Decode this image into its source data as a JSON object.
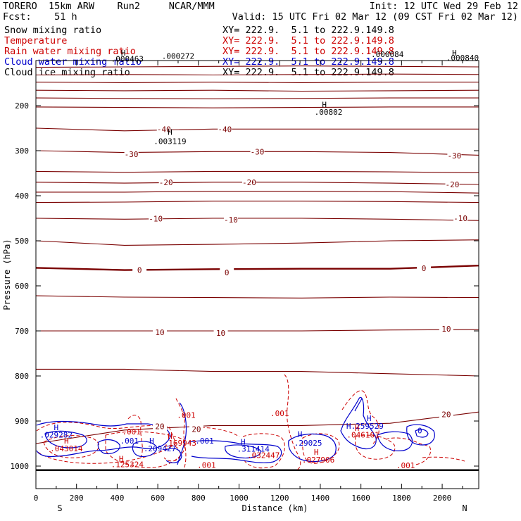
{
  "header": {
    "model": "TORERO  15km ARW    Run2     NCAR/MMM",
    "init": "Init: 12 UTC Wed 29 Feb 12",
    "fcst": "Fcst:    51 h",
    "valid": "Valid: 15 UTC Fri 02 Mar 12 (09 CST Fri 02 Mar 12)",
    "fields": [
      {
        "name": "Snow mixing ratio",
        "xy": "XY= 222.9.  5.1 to 222.9.149.8",
        "color": "#000000"
      },
      {
        "name": "Temperature",
        "xy": "XY= 222.9.  5.1 to 222.9.149.8",
        "color": "#cc0000"
      },
      {
        "name": "Rain water mixing ratio",
        "xy": "XY= 222.9.  5.1 to 222.9.149.8",
        "color": "#cc0000"
      },
      {
        "name": "Cloud water mixing ratio",
        "xy": "XY= 222.9.  5.1 to 222.9.149.8",
        "color": "#0000cc"
      },
      {
        "name": "Cloud ice mixing ratio",
        "xy": "XY= 222.9.  5.1 to 222.9.149.8",
        "color": "#000000"
      }
    ]
  },
  "chart_data": {
    "type": "contour-cross-section",
    "xlabel": "Distance (km)",
    "ylabel": "Pressure (hPa)",
    "xlim": [
      0,
      2180
    ],
    "ylim": [
      1050,
      100
    ],
    "x_ticks": [
      0,
      200,
      400,
      600,
      800,
      1000,
      1200,
      1400,
      1600,
      1800,
      2000
    ],
    "y_ticks": [
      200,
      300,
      400,
      500,
      600,
      700,
      800,
      900,
      1000
    ],
    "endpoints": {
      "left": "S",
      "right": "N"
    },
    "ground_pressure": 1009,
    "temperature_contours": {
      "color": "#7a0000",
      "interval_c": 5,
      "levels": [
        {
          "label": "",
          "p": [
            115,
            114,
            113,
            112,
            113,
            114
          ]
        },
        {
          "label": "",
          "p": [
            132,
            131,
            132,
            131,
            130,
            131
          ]
        },
        {
          "label": "",
          "p": [
            148,
            149,
            148,
            149,
            148,
            148
          ]
        },
        {
          "label": "",
          "p": [
            166,
            167,
            166,
            168,
            167,
            166
          ]
        },
        {
          "label": "",
          "p": [
            183,
            184,
            185,
            184,
            183,
            183
          ]
        },
        {
          "label": "",
          "p": [
            203,
            204,
            205,
            204,
            203,
            203
          ]
        },
        {
          "label": "-40",
          "p": [
            250,
            256,
            252,
            252,
            252,
            252
          ]
        },
        {
          "label": "-30",
          "p": [
            300,
            304,
            302,
            302,
            304,
            310
          ]
        },
        {
          "label": "",
          "p": [
            346,
            348,
            346,
            346,
            347,
            349
          ]
        },
        {
          "label": "-20",
          "p": [
            370,
            372,
            370,
            370,
            372,
            375
          ]
        },
        {
          "label": "",
          "p": [
            392,
            392,
            390,
            390,
            391,
            394
          ]
        },
        {
          "label": "",
          "p": [
            415,
            414,
            412,
            412,
            413,
            415
          ]
        },
        {
          "label": "-10",
          "p": [
            450,
            452,
            450,
            450,
            452,
            455
          ]
        },
        {
          "label": "",
          "p": [
            500,
            510,
            508,
            505,
            500,
            498
          ]
        },
        {
          "label": "0",
          "p": [
            560,
            565,
            563,
            562,
            562,
            555
          ]
        },
        {
          "label": "",
          "p": [
            622,
            625,
            626,
            627,
            625,
            626
          ]
        },
        {
          "label": "10",
          "p": [
            700,
            700,
            700,
            700,
            698,
            697
          ]
        },
        {
          "label": "",
          "p": [
            785,
            785,
            790,
            790,
            795,
            800
          ]
        },
        {
          "label": "20",
          "p": [
            950,
            920,
            910,
            910,
            905,
            880
          ]
        }
      ],
      "label_annotations": [
        {
          "text": "-40",
          "x": 630,
          "p": 252
        },
        {
          "text": "-40",
          "x": 930,
          "p": 252
        },
        {
          "text": "-30",
          "x": 470,
          "p": 308
        },
        {
          "text": "-30",
          "x": 1090,
          "p": 302
        },
        {
          "text": "-30",
          "x": 2060,
          "p": 311
        },
        {
          "text": "-20",
          "x": 640,
          "p": 370
        },
        {
          "text": "-20",
          "x": 1050,
          "p": 370
        },
        {
          "text": "-20",
          "x": 2050,
          "p": 375
        },
        {
          "text": "-10",
          "x": 590,
          "p": 451
        },
        {
          "text": "-10",
          "x": 960,
          "p": 453
        },
        {
          "text": "-10",
          "x": 2090,
          "p": 450
        },
        {
          "text": "0",
          "x": 510,
          "p": 565
        },
        {
          "text": "0",
          "x": 940,
          "p": 570
        },
        {
          "text": "0",
          "x": 1910,
          "p": 561
        },
        {
          "text": "10",
          "x": 610,
          "p": 703
        },
        {
          "text": "10",
          "x": 910,
          "p": 705
        },
        {
          "text": "10",
          "x": 2020,
          "p": 695
        },
        {
          "text": "20",
          "x": 610,
          "p": 912
        },
        {
          "text": "20",
          "x": 790,
          "p": 918
        },
        {
          "text": "20",
          "x": 2020,
          "p": 885
        }
      ]
    },
    "extrema_labels": [
      {
        "text": "H",
        "x": 430,
        "p": 89,
        "color": "#000000"
      },
      {
        "text": ".000463",
        "x": 450,
        "p": 102,
        "color": "#000000"
      },
      {
        "text": ".000272",
        "x": 700,
        "p": 96,
        "color": "#000000"
      },
      {
        "text": ".000084",
        "x": 1730,
        "p": 92,
        "color": "#000000"
      },
      {
        "text": "H",
        "x": 2060,
        "p": 89,
        "color": "#000000"
      },
      {
        "text": ".000840",
        "x": 2100,
        "p": 100,
        "color": "#000000"
      },
      {
        "text": "H",
        "x": 1420,
        "p": 204,
        "color": "#000000"
      },
      {
        "text": ".00802",
        "x": 1440,
        "p": 220,
        "color": "#000000"
      },
      {
        "text": "H",
        "x": 660,
        "p": 265,
        "color": "#000000"
      },
      {
        "text": ".003119",
        "x": 660,
        "p": 285,
        "color": "#000000"
      },
      {
        "text": ".001",
        "x": 740,
        "p": 893,
        "color": "#cc0000"
      },
      {
        "text": "H",
        "x": 100,
        "p": 920,
        "color": "#0000cc"
      },
      {
        "text": ".029282",
        "x": 100,
        "p": 937,
        "color": "#0000cc"
      },
      {
        "text": "H",
        "x": 150,
        "p": 950,
        "color": "#cc0000"
      },
      {
        "text": ".043014",
        "x": 150,
        "p": 967,
        "color": "#cc0000"
      },
      {
        "text": ".001",
        "x": 470,
        "p": 930,
        "color": "#cc0000"
      },
      {
        "text": ".001",
        "x": 460,
        "p": 950,
        "color": "#0000cc"
      },
      {
        "text": "H",
        "x": 570,
        "p": 950,
        "color": "#0000cc"
      },
      {
        "text": ".269427",
        "x": 610,
        "p": 967,
        "color": "#0000cc"
      },
      {
        "text": "H",
        "x": 660,
        "p": 940,
        "color": "#cc0000"
      },
      {
        "text": ".169943",
        "x": 710,
        "p": 955,
        "color": "#cc0000"
      },
      {
        "text": "H",
        "x": 420,
        "p": 990,
        "color": "#cc0000"
      },
      {
        "text": ".125324",
        "x": 450,
        "p": 1002,
        "color": "#cc0000"
      },
      {
        "text": ".001",
        "x": 830,
        "p": 950,
        "color": "#0000cc"
      },
      {
        "text": ".001",
        "x": 840,
        "p": 1004,
        "color": "#cc0000"
      },
      {
        "text": "H",
        "x": 1020,
        "p": 952,
        "color": "#0000cc"
      },
      {
        "text": ".311414",
        "x": 1070,
        "p": 968,
        "color": "#0000cc"
      },
      {
        "text": ".032447",
        "x": 1120,
        "p": 982,
        "color": "#cc0000"
      },
      {
        "text": ".001",
        "x": 1200,
        "p": 889,
        "color": "#cc0000"
      },
      {
        "text": "H",
        "x": 1300,
        "p": 935,
        "color": "#0000cc"
      },
      {
        "text": ".29025",
        "x": 1340,
        "p": 955,
        "color": "#0000cc"
      },
      {
        "text": "H",
        "x": 1380,
        "p": 975,
        "color": "#cc0000"
      },
      {
        "text": ".027906",
        "x": 1390,
        "p": 992,
        "color": "#cc0000"
      },
      {
        "text": "H",
        "x": 1640,
        "p": 900,
        "color": "#0000cc"
      },
      {
        "text": "H.259529",
        "x": 1620,
        "p": 917,
        "color": "#0000cc"
      },
      {
        "text": "H",
        "x": 1580,
        "p": 922,
        "color": "#cc0000"
      },
      {
        "text": ".046161",
        "x": 1610,
        "p": 937,
        "color": "#cc0000"
      },
      {
        "text": ".001",
        "x": 1820,
        "p": 1005,
        "color": "#cc0000"
      },
      {
        "text": "0",
        "x": 1890,
        "p": 927,
        "color": "#0000cc"
      }
    ]
  },
  "colors": {
    "temperature": "#7a0000",
    "rain": "#cc0000",
    "cloud_water": "#0000cc",
    "text": "#000000"
  }
}
